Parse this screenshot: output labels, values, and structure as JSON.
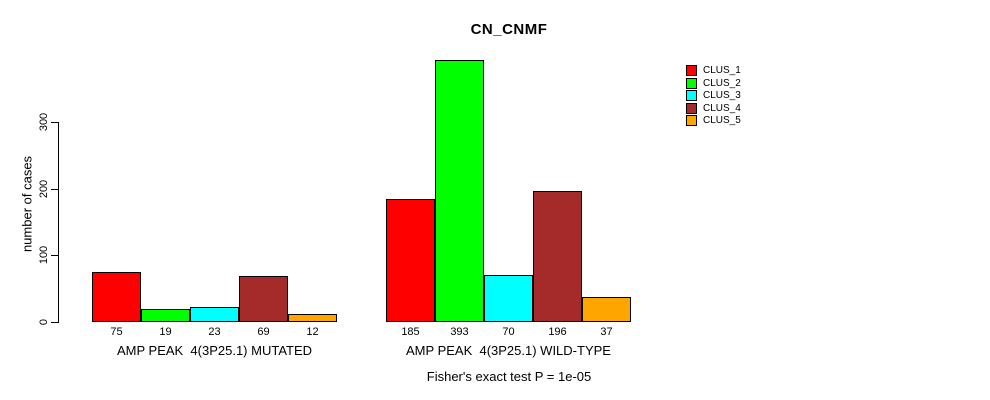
{
  "page": {
    "background_color": "#FFFFFF",
    "text_color": "#000000"
  },
  "chart_data": {
    "type": "bar",
    "title": "CN_CNMF",
    "ylabel": "number of cases",
    "xlabel": "",
    "yticks": [
      0,
      100,
      200,
      300
    ],
    "ylim": [
      0,
      420
    ],
    "grid": false,
    "bar_value_labels_shown": true,
    "legend_position": "top-right",
    "categories": [
      "AMP PEAK  4(3P25.1) MUTATED",
      "AMP PEAK  4(3P25.1) WILD-TYPE"
    ],
    "series": [
      {
        "name": "CLUS_1",
        "color": "#FF0000",
        "values": [
          75,
          185
        ]
      },
      {
        "name": "CLUS_2",
        "color": "#00FF00",
        "values": [
          19,
          393
        ]
      },
      {
        "name": "CLUS_3",
        "color": "#00FFFF",
        "values": [
          23,
          70
        ]
      },
      {
        "name": "CLUS_4",
        "color": "#A52A2A",
        "values": [
          69,
          196
        ]
      },
      {
        "name": "CLUS_5",
        "color": "#FFA500",
        "values": [
          12,
          37
        ]
      }
    ],
    "annotation": "Fisher's exact test P = 1e-05"
  }
}
